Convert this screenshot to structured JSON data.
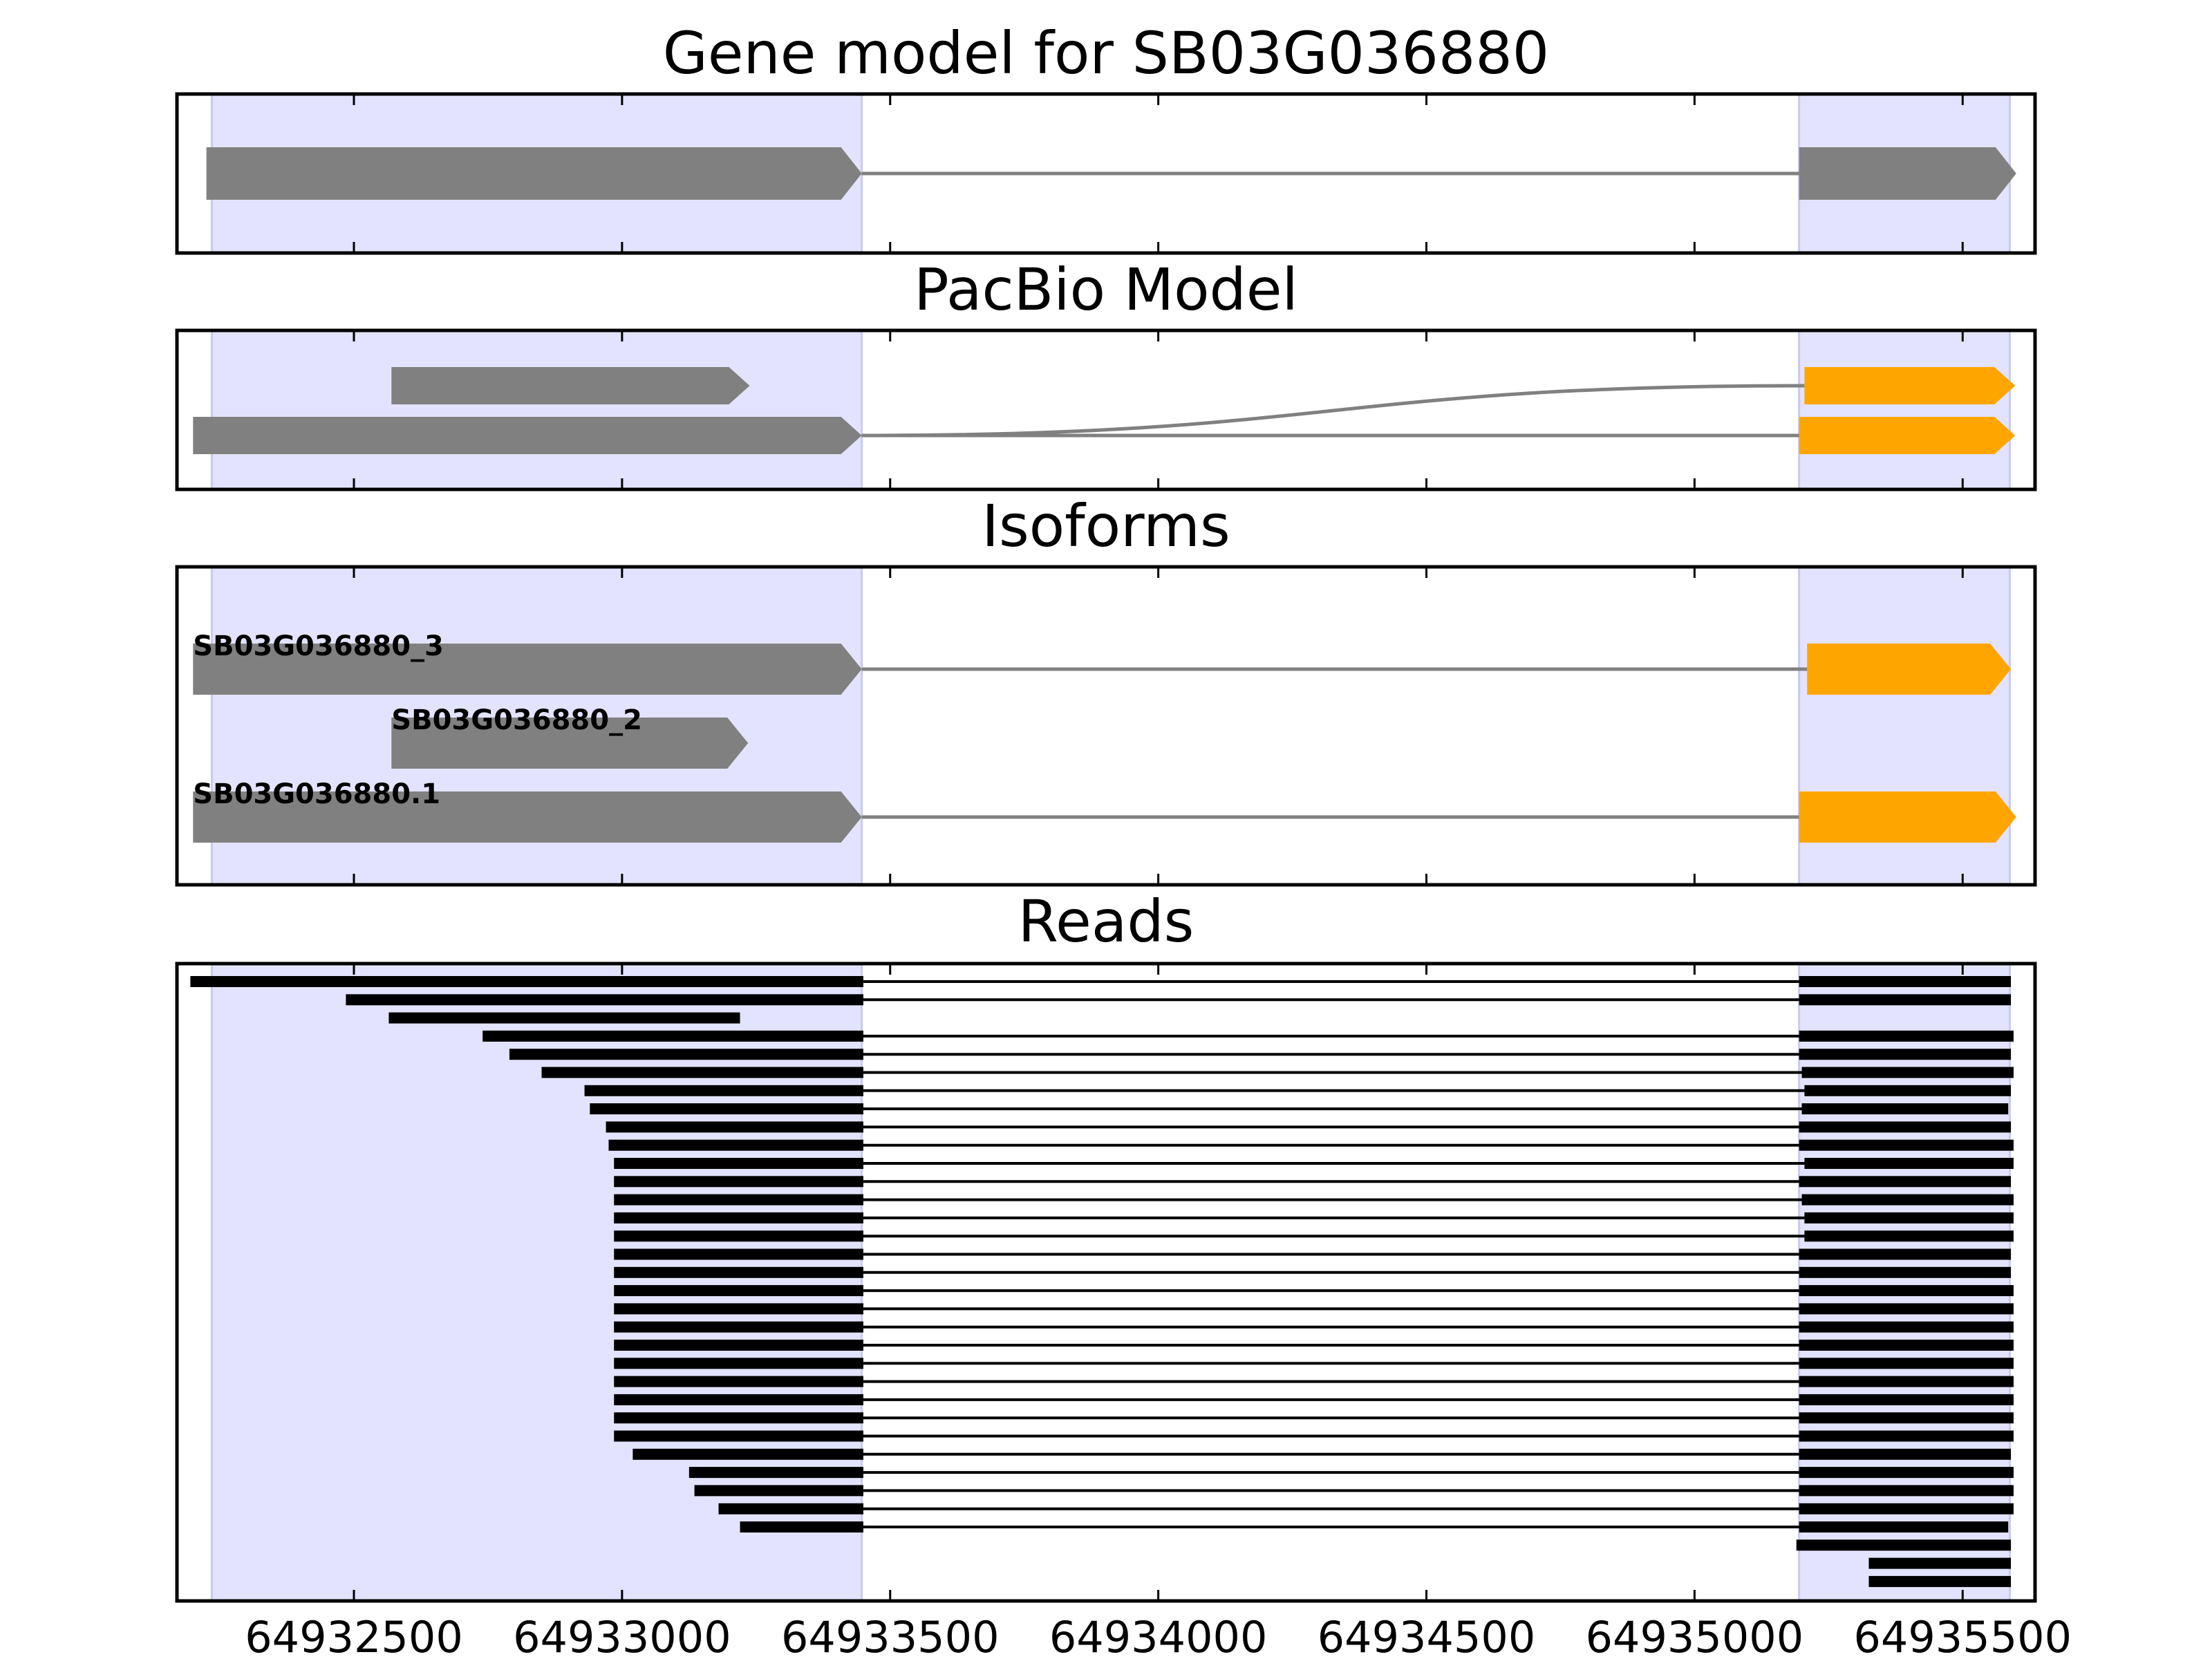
{
  "chart_data": {
    "type": "gene-structure",
    "xlim": [
      64932170,
      64935635
    ],
    "xticks": [
      {
        "value": 64932500,
        "label": "64932500"
      },
      {
        "value": 64933000,
        "label": "64933000"
      },
      {
        "value": 64933500,
        "label": "64933500"
      },
      {
        "value": 64934000,
        "label": "64934000"
      },
      {
        "value": 64934500,
        "label": "64934500"
      },
      {
        "value": 64935000,
        "label": "64935000"
      },
      {
        "value": 64935500,
        "label": "64935500"
      }
    ],
    "shaded_regions": [
      [
        64932235,
        64933447
      ],
      [
        64935195,
        64935588
      ]
    ],
    "colors": {
      "exon": "#808080",
      "highlight": "#ffa500",
      "intron": "#808080",
      "shade": "#e3e3ff",
      "read": "#000000"
    },
    "panels": [
      {
        "title": "Gene model for SB03G036880",
        "transcripts": [
          {
            "exons": [
              {
                "start": 64932225,
                "end": 64933447,
                "color": "exon"
              },
              {
                "start": 64935195,
                "end": 64935600,
                "color": "exon"
              }
            ],
            "row": 0,
            "intron": "straight",
            "label": ""
          }
        ]
      },
      {
        "title": "PacBio Model",
        "transcripts": [
          {
            "exons": [
              {
                "start": 64932570,
                "end": 64933238,
                "color": "exon"
              }
            ],
            "row": 0,
            "label": ""
          },
          {
            "exons": [
              {
                "start": 64932200,
                "end": 64933447,
                "color": "exon"
              },
              {
                "start": 64935205,
                "end": 64935598,
                "color": "highlight"
              }
            ],
            "row": 0,
            "intron": "curve",
            "intron_end_row": 0,
            "label": ""
          },
          {
            "exons": [
              {
                "start": 64935195,
                "end": 64935598,
                "color": "highlight"
              }
            ],
            "row": 1,
            "intron_from": 64933447,
            "intron": "straight",
            "label": ""
          }
        ]
      },
      {
        "title": "Isoforms",
        "transcripts": [
          {
            "exons": [
              {
                "start": 64932200,
                "end": 64933447,
                "color": "exon"
              },
              {
                "start": 64935210,
                "end": 64935590,
                "color": "highlight"
              }
            ],
            "intron": "straight",
            "label": "SB03G036880_3"
          },
          {
            "exons": [
              {
                "start": 64932570,
                "end": 64933235,
                "color": "exon"
              }
            ],
            "label": "SB03G036880_2"
          },
          {
            "exons": [
              {
                "start": 64932200,
                "end": 64933447,
                "color": "exon"
              },
              {
                "start": 64935195,
                "end": 64935600,
                "color": "highlight"
              }
            ],
            "intron": "straight",
            "label": "SB03G036880.1"
          }
        ]
      },
      {
        "title": "Reads",
        "reads": [
          [
            64932195,
            64933450,
            64935195,
            64935590
          ],
          [
            64932485,
            64933450,
            64935195,
            64935590
          ],
          [
            64932565,
            64933220,
            null,
            null
          ],
          [
            64932740,
            64933450,
            64935195,
            64935595
          ],
          [
            64932790,
            64933450,
            64935195,
            64935590
          ],
          [
            64932850,
            64933450,
            64935200,
            64935595
          ],
          [
            64932930,
            64933450,
            64935205,
            64935590
          ],
          [
            64932940,
            64933450,
            64935200,
            64935585
          ],
          [
            64932970,
            64933450,
            64935195,
            64935590
          ],
          [
            64932975,
            64933450,
            64935195,
            64935595
          ],
          [
            64932985,
            64933450,
            64935205,
            64935595
          ],
          [
            64932985,
            64933450,
            64935195,
            64935590
          ],
          [
            64932985,
            64933450,
            64935200,
            64935595
          ],
          [
            64932985,
            64933450,
            64935205,
            64935595
          ],
          [
            64932985,
            64933450,
            64935205,
            64935595
          ],
          [
            64932985,
            64933450,
            64935195,
            64935590
          ],
          [
            64932985,
            64933450,
            64935195,
            64935590
          ],
          [
            64932985,
            64933450,
            64935195,
            64935595
          ],
          [
            64932985,
            64933450,
            64935195,
            64935595
          ],
          [
            64932985,
            64933450,
            64935195,
            64935595
          ],
          [
            64932985,
            64933450,
            64935195,
            64935595
          ],
          [
            64932985,
            64933450,
            64935195,
            64935595
          ],
          [
            64932985,
            64933450,
            64935195,
            64935595
          ],
          [
            64932985,
            64933450,
            64935195,
            64935595
          ],
          [
            64932985,
            64933450,
            64935195,
            64935595
          ],
          [
            64932985,
            64933450,
            64935195,
            64935595
          ],
          [
            64933020,
            64933450,
            64935195,
            64935590
          ],
          [
            64933125,
            64933450,
            64935195,
            64935595
          ],
          [
            64933135,
            64933450,
            64935195,
            64935595
          ],
          [
            64933180,
            64933450,
            64935195,
            64935595
          ],
          [
            64933220,
            64933450,
            64935195,
            64935585
          ],
          [
            null,
            null,
            64935190,
            64935590
          ],
          [
            null,
            null,
            64935325,
            64935590
          ],
          [
            null,
            null,
            64935325,
            64935590
          ]
        ]
      }
    ]
  }
}
